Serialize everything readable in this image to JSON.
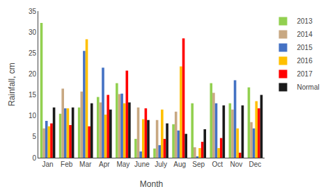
{
  "chart_data": {
    "type": "bar",
    "xlabel": "Month",
    "ylabel": "Rainfall, cm",
    "categories": [
      "Jan",
      "Feb",
      "Mar",
      "Apr",
      "May",
      "June",
      "July",
      "Aug",
      "Sep",
      "Oct",
      "Nov",
      "Dec"
    ],
    "series": [
      {
        "name": "2013",
        "color": "#92D050",
        "values": [
          32.2,
          10.5,
          12.0,
          14.5,
          17.8,
          4.5,
          2.2,
          8.0,
          13.0,
          17.8,
          13.0,
          16.8
        ]
      },
      {
        "name": "2014",
        "color": "#C8A882",
        "values": [
          7.0,
          16.5,
          15.8,
          13.2,
          15.2,
          12.0,
          9.0,
          11.0,
          2.5,
          15.5,
          11.5,
          8.5
        ]
      },
      {
        "name": "2015",
        "color": "#4472C4",
        "values": [
          8.8,
          11.8,
          25.5,
          21.5,
          15.3,
          1.5,
          3.0,
          6.5,
          0.3,
          13.0,
          18.5,
          7.0
        ]
      },
      {
        "name": "2016",
        "color": "#FFC000",
        "values": [
          7.5,
          11.8,
          28.3,
          10.3,
          13.0,
          9.2,
          11.5,
          21.8,
          2.3,
          2.3,
          7.0,
          13.5
        ]
      },
      {
        "name": "2017",
        "color": "#FF0000",
        "values": [
          8.2,
          7.8,
          7.5,
          15.0,
          20.8,
          11.8,
          4.5,
          28.5,
          3.8,
          4.7,
          1.2,
          11.8
        ]
      },
      {
        "name": "Normal",
        "color": "#1A1A1A",
        "values": [
          12.0,
          12.0,
          13.0,
          11.5,
          13.2,
          9.0,
          8.2,
          5.7,
          6.8,
          12.5,
          12.5,
          15.0
        ]
      }
    ],
    "ylim": [
      0,
      35
    ],
    "yticks": [
      0,
      5,
      10,
      15,
      20,
      25,
      30,
      35
    ],
    "grid": false,
    "legend": "upper right"
  }
}
